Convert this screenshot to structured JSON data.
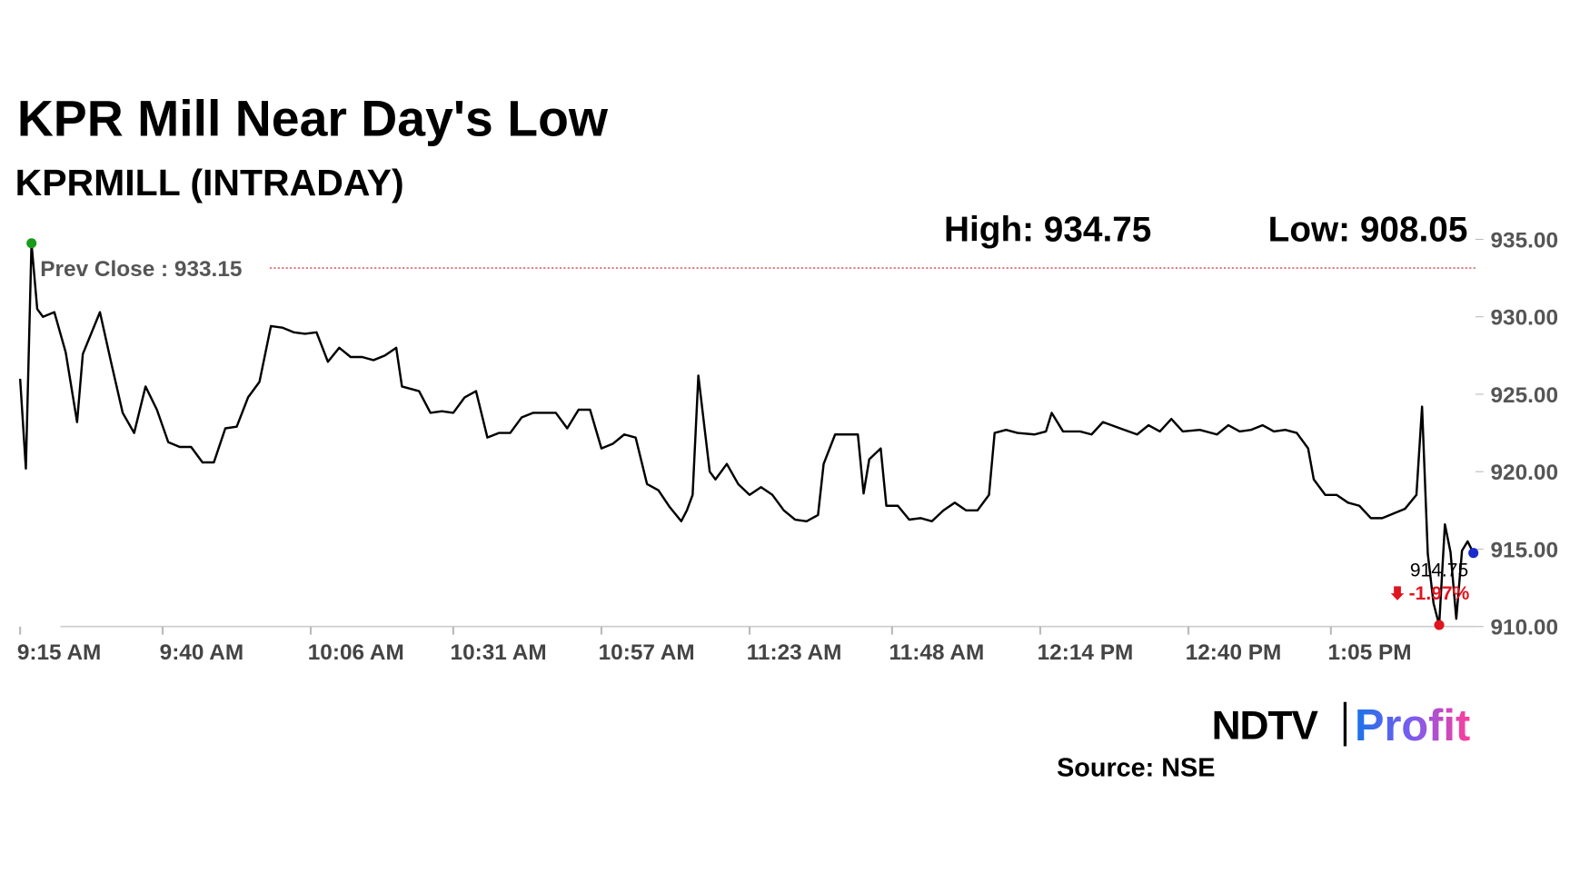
{
  "chart_data": {
    "type": "line",
    "title": "KPR Mill Near Day's Low",
    "subtitle": "KPRMILL (INTRADAY)",
    "high": {
      "label": "High: 934.75",
      "value": 934.75
    },
    "low": {
      "label": "Low: 908.05",
      "value": 908.05
    },
    "prev_close": {
      "label": "Prev Close : 933.15",
      "value": 933.15,
      "color": "#d0202a"
    },
    "last": {
      "label": "914.75",
      "value": 914.75,
      "change": -1.97,
      "change_label": "-1.97%"
    },
    "source": "Source: NSE",
    "logo": [
      "NDTV",
      "Profit"
    ],
    "xlim": [
      "9:15 AM",
      "1:30 PM"
    ],
    "xticks": [
      "9:15 AM",
      "9:40 AM",
      "10:06 AM",
      "10:31 AM",
      "10:57 AM",
      "11:23 AM",
      "11:48 AM",
      "12:14 PM",
      "12:40 PM",
      "1:05 PM"
    ],
    "ylim": [
      910,
      935
    ],
    "yticks": [
      {
        "value": 910,
        "label": "910.00"
      },
      {
        "value": 915,
        "label": "915.00"
      },
      {
        "value": 920,
        "label": "920.00"
      },
      {
        "value": 925,
        "label": "925.00"
      },
      {
        "value": 930,
        "label": "930.00"
      },
      {
        "value": 935,
        "label": "935.00"
      }
    ],
    "grid": false,
    "x": [
      "9:15 AM",
      "9:16 AM",
      "9:17 AM",
      "9:18 AM",
      "9:19 AM",
      "9:21 AM",
      "9:23 AM",
      "9:25 AM",
      "9:26 AM",
      "9:29 AM",
      "9:31 AM",
      "9:33 AM",
      "9:35 AM",
      "9:37 AM",
      "9:39 AM",
      "9:41 AM",
      "9:43 AM",
      "9:45 AM",
      "9:47 AM",
      "9:49 AM",
      "9:51 AM",
      "9:53 AM",
      "9:55 AM",
      "9:57 AM",
      "9:59 AM",
      "10:01 AM",
      "10:03 AM",
      "10:05 AM",
      "10:07 AM",
      "10:09 AM",
      "10:11 AM",
      "10:13 AM",
      "10:15 AM",
      "10:17 AM",
      "10:19 AM",
      "10:21 AM",
      "10:22 AM",
      "10:25 AM",
      "10:27 AM",
      "10:29 AM",
      "10:31 AM",
      "10:33 AM",
      "10:35 AM",
      "10:37 AM",
      "10:39 AM",
      "10:41 AM",
      "10:43 AM",
      "10:45 AM",
      "10:47 AM",
      "10:49 AM",
      "10:51 AM",
      "10:53 AM",
      "10:55 AM",
      "10:57 AM",
      "10:59 AM",
      "11:01 AM",
      "11:03 AM",
      "11:05 AM",
      "11:07 AM",
      "11:09 AM",
      "11:11 AM",
      "11:12 AM",
      "11:13 AM",
      "11:14 AM",
      "11:16 AM",
      "11:17 AM",
      "11:19 AM",
      "11:21 AM",
      "11:23 AM",
      "11:25 AM",
      "11:27 AM",
      "11:29 AM",
      "11:31 AM",
      "11:33 AM",
      "11:35 AM",
      "11:36 AM",
      "11:38 AM",
      "11:40 AM",
      "11:42 AM",
      "11:43 AM",
      "11:44 AM",
      "11:46 AM",
      "11:47 AM",
      "11:49 AM",
      "11:51 AM",
      "11:53 AM",
      "11:55 AM",
      "11:57 AM",
      "11:59 AM",
      "12:01 PM",
      "12:03 PM",
      "12:05 PM",
      "12:06 PM",
      "12:08 PM",
      "12:10 PM",
      "12:13 PM",
      "12:15 PM",
      "12:16 PM",
      "12:18 PM",
      "12:21 PM",
      "12:23 PM",
      "12:25 PM",
      "12:28 PM",
      "12:31 PM",
      "12:33 PM",
      "12:35 PM",
      "12:37 PM",
      "12:39 PM",
      "12:42 PM",
      "12:45 PM",
      "12:47 PM",
      "12:49 PM",
      "12:51 PM",
      "12:53 PM",
      "12:55 PM",
      "12:57 PM",
      "12:59 PM",
      "1:01 PM",
      "1:02 PM",
      "1:04 PM",
      "1:06 PM",
      "1:08 PM",
      "1:10 PM",
      "1:12 PM",
      "1:14 PM",
      "1:16 PM",
      "1:18 PM",
      "1:20 PM",
      "1:21 PM",
      "1:22 PM",
      "1:23 PM",
      "1:24 PM",
      "1:25 PM",
      "1:26 PM",
      "1:27 PM",
      "1:28 PM",
      "1:29 PM",
      "1:30 PM"
    ],
    "series": [
      {
        "name": "KPRMILL",
        "color": "#000000",
        "values": [
          926.0,
          920.2,
          934.75,
          930.5,
          930.0,
          930.3,
          927.7,
          923.2,
          927.6,
          930.3,
          927.0,
          923.8,
          922.5,
          925.5,
          924.0,
          921.9,
          921.6,
          921.6,
          920.6,
          920.6,
          922.8,
          922.9,
          924.8,
          925.8,
          929.4,
          929.3,
          929.0,
          928.9,
          929.0,
          927.1,
          928.0,
          927.4,
          927.4,
          927.2,
          927.5,
          928.0,
          925.5,
          925.2,
          923.8,
          923.9,
          923.8,
          924.8,
          925.2,
          922.2,
          922.5,
          922.5,
          923.5,
          923.8,
          923.8,
          923.8,
          922.8,
          924.0,
          924.0,
          921.5,
          921.8,
          922.4,
          922.2,
          919.2,
          918.8,
          917.7,
          916.8,
          917.5,
          918.5,
          926.2,
          920.0,
          919.5,
          920.5,
          919.2,
          918.5,
          919.0,
          918.5,
          917.5,
          916.9,
          916.8,
          917.2,
          920.5,
          922.4,
          922.4,
          922.4,
          918.6,
          920.8,
          921.5,
          917.8,
          917.8,
          916.9,
          917.0,
          916.8,
          917.5,
          918.0,
          917.5,
          917.5,
          918.5,
          922.5,
          922.7,
          922.5,
          922.4,
          922.6,
          923.8,
          922.6,
          922.6,
          922.4,
          923.2,
          922.8,
          922.4,
          923.0,
          922.6,
          923.4,
          922.6,
          922.7,
          922.4,
          923.0,
          922.6,
          922.7,
          923.0,
          922.6,
          922.7,
          922.5,
          921.5,
          919.5,
          918.5,
          918.5,
          918.0,
          917.8,
          917.0,
          917.0,
          917.3,
          917.6,
          918.5,
          924.2,
          914.7,
          911.5,
          910.1,
          916.6,
          914.8,
          910.5,
          914.9,
          915.5,
          914.75
        ]
      }
    ]
  }
}
